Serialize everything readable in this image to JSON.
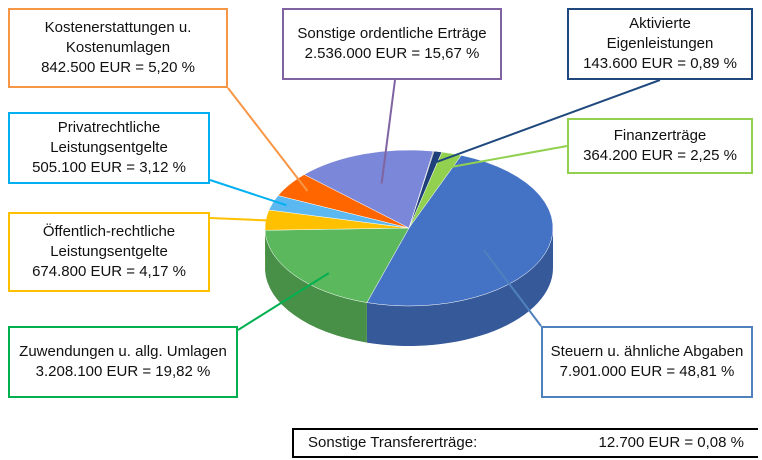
{
  "chart_data": {
    "type": "pie3d",
    "categories": [
      "Aktivierte Eigenleistungen",
      "Finanzerträge",
      "Steuern u. ähnliche Abgaben",
      "Zuwendungen u. allg. Umlagen",
      "Öffentlich-rechtliche Leistungsentgelte",
      "Privatrechtliche Leistungsentgelte",
      "Kostenerstattungen u. Kostenumlagen",
      "Sonstige ordentliche Erträge",
      "Sonstige Transfererträge:"
    ],
    "values": [
      0.89,
      2.25,
      48.81,
      19.82,
      4.17,
      3.12,
      5.2,
      15.67,
      0.08
    ],
    "value_labels": [
      "143.600 EUR = 0,89 %",
      "364.200 EUR = 2,25 %",
      "7.901.000 EUR = 48,81 %",
      "3.208.100 EUR = 19,82 %",
      "674.800 EUR = 4,17 %",
      "505.100 EUR = 3,12 %",
      "842.500 EUR = 5,20 %",
      "2.536.000 EUR = 15,67 %",
      "12.700 EUR = 0,08 %"
    ],
    "colors": [
      "#1f3f7a",
      "#92d050",
      "#4472c4",
      "#5cb85c",
      "#ffc000",
      "#5bb8f0",
      "#ff6600",
      "#7b87d8",
      "#222222"
    ],
    "label_border_colors": [
      "#1f497d",
      "#92d050",
      "#4f81bd",
      "#00b050",
      "#ffc000",
      "#00b0f0",
      "#f79646",
      "#8064a2",
      "#000000"
    ]
  }
}
